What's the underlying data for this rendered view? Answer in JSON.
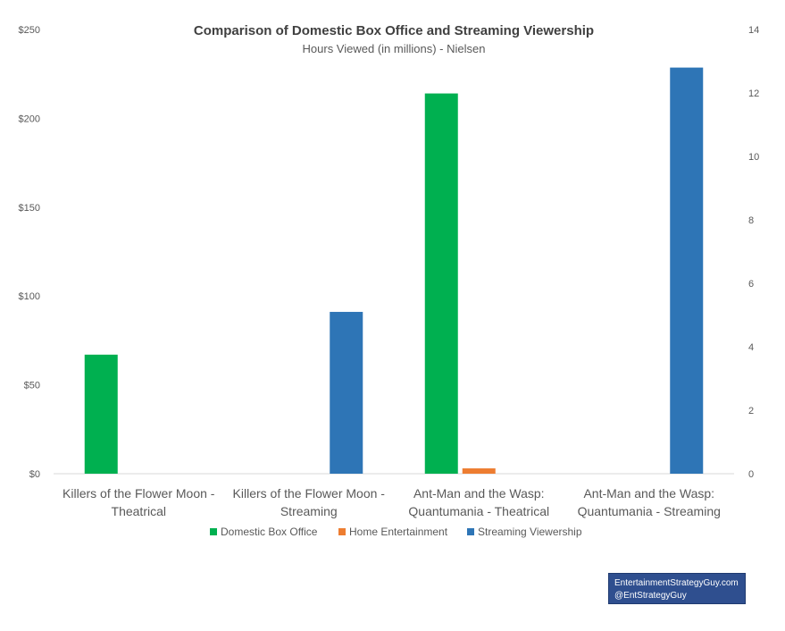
{
  "chart_data": {
    "type": "bar",
    "title": "Comparison of Domestic Box Office and Streaming Viewership",
    "subtitle": "Hours Viewed (in millions) - Nielsen",
    "categories": [
      [
        "Killers of the Flower Moon -",
        "Theatrical"
      ],
      [
        "Killers of the Flower Moon -",
        "Streaming"
      ],
      [
        "Ant-Man and the Wasp:",
        "Quantumania - Theatrical"
      ],
      [
        "Ant-Man and the Wasp:",
        "Quantumania - Streaming"
      ]
    ],
    "y_left": {
      "ylim": [
        0,
        250
      ],
      "ticks": [
        0,
        50,
        100,
        150,
        200,
        250
      ],
      "tick_labels": [
        "$0",
        "$50",
        "$100",
        "$150",
        "$200",
        "$250"
      ]
    },
    "y_right": {
      "ylim": [
        0,
        14
      ],
      "ticks": [
        0,
        2,
        4,
        6,
        8,
        10,
        12,
        14
      ],
      "tick_labels": [
        "0",
        "2",
        "4",
        "6",
        "8",
        "10",
        "12",
        "14"
      ]
    },
    "series": [
      {
        "name": "Domestic Box Office",
        "axis": "left",
        "color": "#00b050",
        "values": [
          67,
          null,
          214,
          null
        ]
      },
      {
        "name": "Home Entertainment",
        "axis": "left",
        "color": "#ed7d31",
        "values": [
          null,
          null,
          3,
          null
        ]
      },
      {
        "name": "Streaming Viewership",
        "axis": "right",
        "color": "#2e75b6",
        "values": [
          null,
          5.1,
          null,
          12.8
        ]
      }
    ],
    "legend_position": "bottom",
    "grid": false
  },
  "credit": {
    "line1": "EntertainmentStrategyGuy.com",
    "line2": "@EntStrategyGuy"
  }
}
